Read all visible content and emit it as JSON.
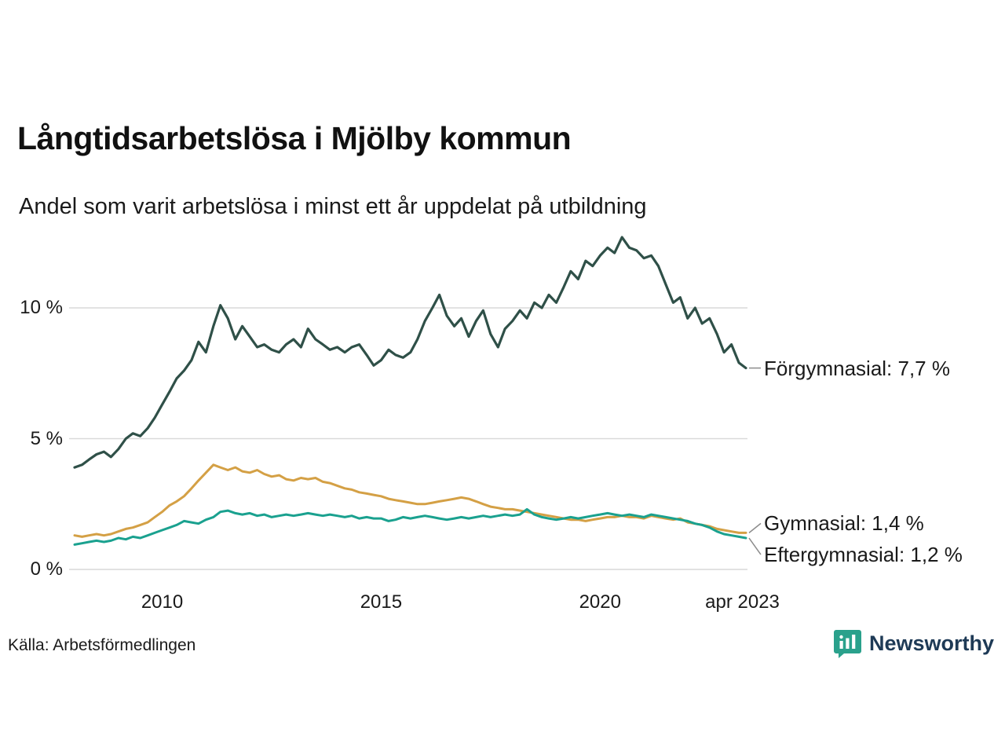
{
  "title": "Långtidsarbetslösa i Mjölby kommun",
  "subtitle": "Andel som varit arbetslösa i minst ett år uppdelat på utbildning",
  "source": "Källa: Arbetsförmedlingen",
  "brand": {
    "name": "Newsworthy",
    "icon_color": "#2aa18c",
    "text_color": "#1e3a56"
  },
  "colors": {
    "grid": "#d9d9d9",
    "connector": "#8c8c8c",
    "text": "#1a1a1a"
  },
  "chart_data": {
    "type": "line",
    "title": "Långtidsarbetslösa i Mjölby kommun",
    "subtitle": "Andel som varit arbetslösa i minst ett år uppdelat på utbildning",
    "xlabel": "",
    "ylabel": "",
    "grid": "horizontal",
    "legend_position": "right-end-labels",
    "xlim": [
      2008,
      2023.33
    ],
    "ylim": [
      0,
      13.2
    ],
    "y_ticks": [
      {
        "label": "10 %",
        "value": 10
      },
      {
        "label": "5 %",
        "value": 5
      },
      {
        "label": "0 %",
        "value": 0
      }
    ],
    "x_ticks": [
      {
        "label": "2010",
        "value": 2010
      },
      {
        "label": "2015",
        "value": 2015
      },
      {
        "label": "2020",
        "value": 2020
      },
      {
        "label": "apr 2023",
        "value": 2023.25
      }
    ],
    "x": [
      2008,
      2008.17,
      2008.33,
      2008.5,
      2008.67,
      2008.83,
      2009,
      2009.17,
      2009.33,
      2009.5,
      2009.67,
      2009.83,
      2010,
      2010.17,
      2010.33,
      2010.5,
      2010.67,
      2010.83,
      2011,
      2011.17,
      2011.33,
      2011.5,
      2011.67,
      2011.83,
      2012,
      2012.17,
      2012.33,
      2012.5,
      2012.67,
      2012.83,
      2013,
      2013.17,
      2013.33,
      2013.5,
      2013.67,
      2013.83,
      2014,
      2014.17,
      2014.33,
      2014.5,
      2014.67,
      2014.83,
      2015,
      2015.17,
      2015.33,
      2015.5,
      2015.67,
      2015.83,
      2016,
      2016.17,
      2016.33,
      2016.5,
      2016.67,
      2016.83,
      2017,
      2017.17,
      2017.33,
      2017.5,
      2017.67,
      2017.83,
      2018,
      2018.17,
      2018.33,
      2018.5,
      2018.67,
      2018.83,
      2019,
      2019.17,
      2019.33,
      2019.5,
      2019.67,
      2019.83,
      2020,
      2020.17,
      2020.33,
      2020.5,
      2020.67,
      2020.83,
      2021,
      2021.17,
      2021.33,
      2021.5,
      2021.67,
      2021.83,
      2022,
      2022.17,
      2022.33,
      2022.5,
      2022.67,
      2022.83,
      2023,
      2023.17,
      2023.33
    ],
    "series": [
      {
        "name": "Förgymnasial",
        "label": "Förgymnasial: 7,7 %",
        "end_value_label": "7,7 %",
        "color": "#2f5048",
        "values": [
          3.9,
          4.0,
          4.2,
          4.4,
          4.5,
          4.3,
          4.6,
          5.0,
          5.2,
          5.1,
          5.4,
          5.8,
          6.3,
          6.8,
          7.3,
          7.6,
          8.0,
          8.7,
          8.3,
          9.3,
          10.1,
          9.6,
          8.8,
          9.3,
          8.9,
          8.5,
          8.6,
          8.4,
          8.3,
          8.6,
          8.8,
          8.5,
          9.2,
          8.8,
          8.6,
          8.4,
          8.5,
          8.3,
          8.5,
          8.6,
          8.2,
          7.8,
          8.0,
          8.4,
          8.2,
          8.1,
          8.3,
          8.8,
          9.5,
          10.0,
          10.5,
          9.7,
          9.3,
          9.6,
          8.9,
          9.5,
          9.9,
          9.0,
          8.5,
          9.2,
          9.5,
          9.9,
          9.6,
          10.2,
          10.0,
          10.5,
          10.2,
          10.8,
          11.4,
          11.1,
          11.8,
          11.6,
          12.0,
          12.3,
          12.1,
          12.7,
          12.3,
          12.2,
          11.9,
          12.0,
          11.6,
          10.9,
          10.2,
          10.4,
          9.6,
          10.0,
          9.4,
          9.6,
          9.0,
          8.3,
          8.6,
          7.9,
          7.7
        ]
      },
      {
        "name": "Gymnasial",
        "label": "Gymnasial: 1,4 %",
        "end_value_label": "1,4 %",
        "color": "#d4a045",
        "values": [
          1.3,
          1.25,
          1.3,
          1.35,
          1.3,
          1.35,
          1.45,
          1.55,
          1.6,
          1.7,
          1.8,
          2.0,
          2.2,
          2.45,
          2.6,
          2.8,
          3.1,
          3.4,
          3.7,
          4.0,
          3.9,
          3.8,
          3.9,
          3.75,
          3.7,
          3.8,
          3.65,
          3.55,
          3.6,
          3.45,
          3.4,
          3.5,
          3.45,
          3.5,
          3.35,
          3.3,
          3.2,
          3.1,
          3.05,
          2.95,
          2.9,
          2.85,
          2.8,
          2.7,
          2.65,
          2.6,
          2.55,
          2.5,
          2.5,
          2.55,
          2.6,
          2.65,
          2.7,
          2.75,
          2.7,
          2.6,
          2.5,
          2.4,
          2.35,
          2.3,
          2.3,
          2.25,
          2.2,
          2.15,
          2.1,
          2.05,
          2.0,
          1.95,
          1.9,
          1.9,
          1.85,
          1.9,
          1.95,
          2.0,
          2.0,
          2.05,
          2.0,
          2.0,
          1.95,
          2.05,
          2.0,
          1.95,
          1.9,
          1.95,
          1.8,
          1.75,
          1.7,
          1.65,
          1.55,
          1.5,
          1.45,
          1.4,
          1.4
        ]
      },
      {
        "name": "Eftergymnasial",
        "label": "Eftergymnasial: 1,2 %",
        "end_value_label": "1,2 %",
        "color": "#1aa18f",
        "values": [
          0.95,
          1.0,
          1.05,
          1.1,
          1.05,
          1.1,
          1.2,
          1.15,
          1.25,
          1.2,
          1.3,
          1.4,
          1.5,
          1.6,
          1.7,
          1.85,
          1.8,
          1.75,
          1.9,
          2.0,
          2.2,
          2.25,
          2.15,
          2.1,
          2.15,
          2.05,
          2.1,
          2.0,
          2.05,
          2.1,
          2.05,
          2.1,
          2.15,
          2.1,
          2.05,
          2.1,
          2.05,
          2.0,
          2.05,
          1.95,
          2.0,
          1.95,
          1.95,
          1.85,
          1.9,
          2.0,
          1.95,
          2.0,
          2.05,
          2.0,
          1.95,
          1.9,
          1.95,
          2.0,
          1.95,
          2.0,
          2.05,
          2.0,
          2.05,
          2.1,
          2.05,
          2.1,
          2.3,
          2.1,
          2.0,
          1.95,
          1.9,
          1.95,
          2.0,
          1.95,
          2.0,
          2.05,
          2.1,
          2.15,
          2.1,
          2.05,
          2.1,
          2.05,
          2.0,
          2.1,
          2.05,
          2.0,
          1.95,
          1.9,
          1.85,
          1.75,
          1.7,
          1.6,
          1.45,
          1.35,
          1.3,
          1.25,
          1.2
        ]
      }
    ]
  }
}
